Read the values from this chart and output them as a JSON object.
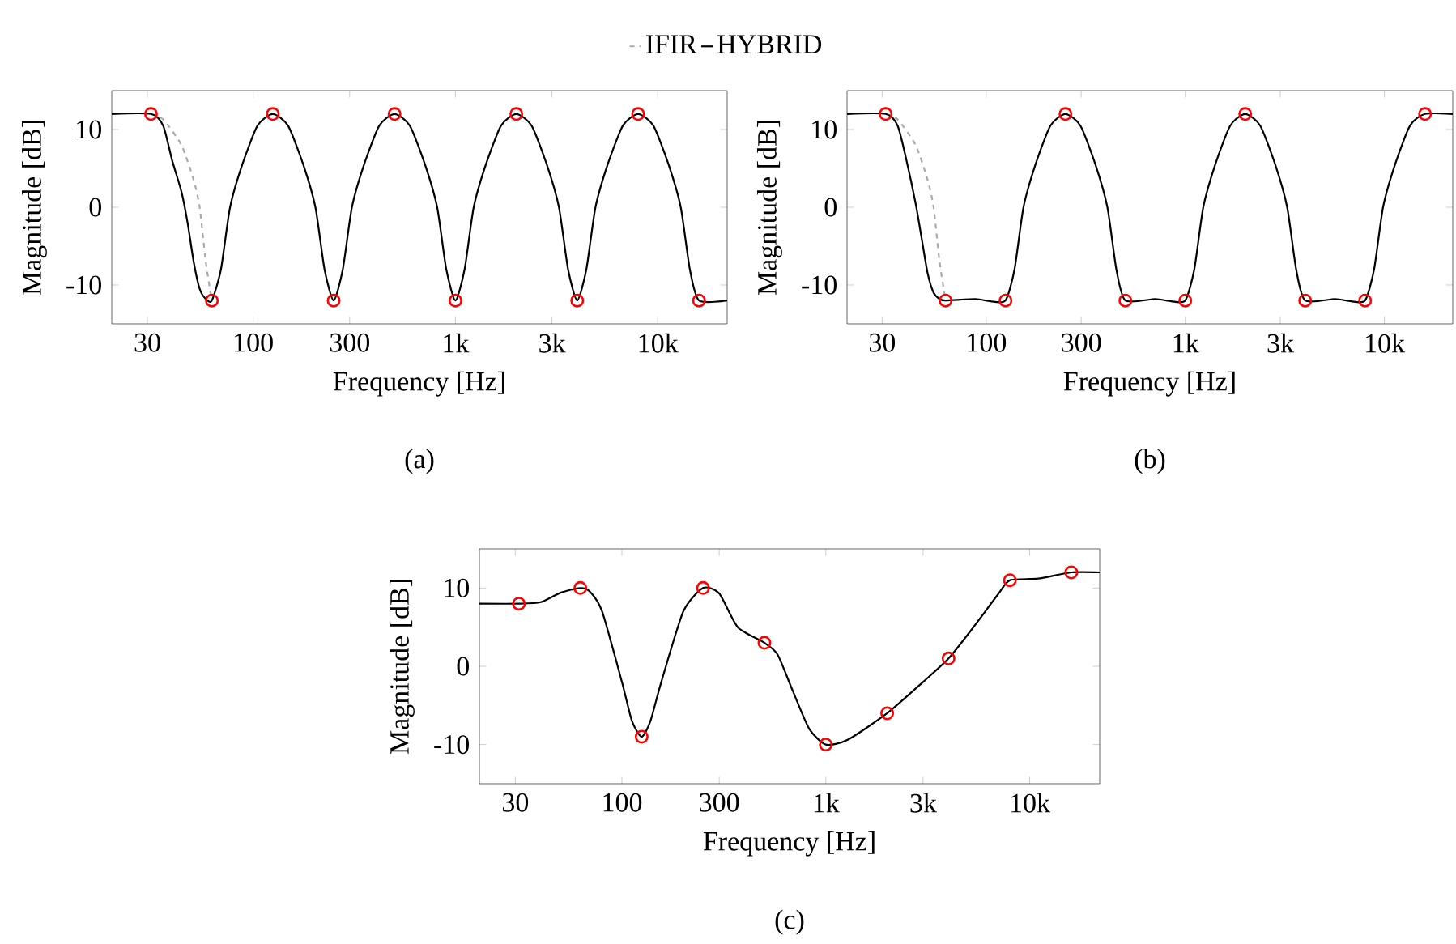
{
  "chart_data": [
    {
      "type": "line",
      "xlabel": "Frequency [Hz]",
      "ylabel": "Magnitude [dB]",
      "log": "x",
      "xlim": [
        20,
        22050
      ],
      "ylim": [
        -15,
        15
      ],
      "xticks": [
        {
          "value": 30,
          "label": "30"
        },
        {
          "value": 100,
          "label": "100"
        },
        {
          "value": 300,
          "label": "300"
        },
        {
          "value": 1000,
          "label": "1k"
        },
        {
          "value": 3000,
          "label": "3k"
        },
        {
          "value": 10000,
          "label": "10k"
        }
      ],
      "yticks": [
        -10,
        0,
        10
      ],
      "legend": "top",
      "annotations": [
        "(a)"
      ],
      "series": [
        {
          "name": "IFIR",
          "line_style": "dashed",
          "color": "#aaaaaa",
          "x": [
            31.25,
            35.9,
            44.2,
            50.8,
            54.4,
            58.3,
            62.5
          ],
          "values": [
            12,
            11.3,
            8,
            3.5,
            0,
            -7,
            -12
          ]
        },
        {
          "name": "HYBRID",
          "line_style": "solid",
          "color": "#000000",
          "x": [
            20,
            31.25,
            35.9,
            39.8,
            44.2,
            47.4,
            50.8,
            54.4,
            58.3,
            62.5,
            69.3,
            76.9,
            88.4,
            105.1,
            125,
            148.7,
            176.8,
            203.1,
            225.3,
            250,
            277.4,
            307.8,
            353.6,
            420.4,
            500,
            594.6,
            707.1,
            812.3,
            901.3,
            1000,
            1109.6,
            1231.1,
            1414.2,
            1681.8,
            2000,
            2378.4,
            2828.4,
            3249,
            3605,
            4000,
            4438,
            4924,
            5657,
            6727,
            8000,
            9514,
            11314,
            12996,
            14420,
            16000,
            22050
          ],
          "values": [
            12,
            12,
            10.5,
            6,
            2,
            -2,
            -7,
            -10.5,
            -11.8,
            -12,
            -8,
            0,
            5.5,
            10.5,
            12,
            10.5,
            5.5,
            0,
            -8,
            -12,
            -8,
            0,
            5.5,
            10.5,
            12,
            10.5,
            5.5,
            0,
            -8,
            -12,
            -8,
            0,
            5.5,
            10.5,
            12,
            10.5,
            5.5,
            0,
            -8,
            -12,
            -8,
            0,
            5.5,
            10.5,
            12,
            10.5,
            5.5,
            0,
            -8,
            -12,
            -12
          ]
        },
        {
          "type": "scatter",
          "marker": "circle",
          "color": "#ff0000",
          "x": [
            31.25,
            62.5,
            125,
            250,
            500,
            1000,
            2000,
            4000,
            8000,
            16000
          ],
          "values": [
            12,
            -12,
            12,
            -12,
            12,
            -12,
            12,
            -12,
            12,
            -12
          ]
        }
      ]
    },
    {
      "type": "line",
      "xlabel": "Frequency [Hz]",
      "ylabel": "Magnitude [dB]",
      "log": "x",
      "xlim": [
        20,
        22050
      ],
      "ylim": [
        -15,
        15
      ],
      "xticks": [
        {
          "value": 30,
          "label": "30"
        },
        {
          "value": 100,
          "label": "100"
        },
        {
          "value": 300,
          "label": "300"
        },
        {
          "value": 1000,
          "label": "1k"
        },
        {
          "value": 3000,
          "label": "3k"
        },
        {
          "value": 10000,
          "label": "10k"
        }
      ],
      "yticks": [
        -10,
        0,
        10
      ],
      "annotations": [
        "(b)"
      ],
      "series": [
        {
          "line_style": "dashed",
          "color": "#aaaaaa",
          "x": [
            31.25,
            35.9,
            44.2,
            50.8,
            54.4,
            58.3,
            62.5
          ],
          "values": [
            12,
            11.3,
            8,
            3.5,
            0,
            -7,
            -12
          ]
        },
        {
          "line_style": "solid",
          "color": "#000000",
          "x": [
            20,
            31.25,
            35.9,
            39.8,
            44.2,
            47.4,
            50.8,
            54.4,
            58.3,
            62.5,
            88.4,
            105,
            125,
            138.7,
            153.9,
            176.8,
            210.2,
            250,
            297.3,
            353.6,
            406.1,
            450.6,
            500,
            707,
            850,
            1000,
            1109.6,
            1231.1,
            1414.2,
            1681.8,
            2000,
            2378.4,
            2828.4,
            3249,
            3605,
            4000,
            5657,
            6800,
            8000,
            8877,
            9849,
            11314,
            13454,
            16000,
            22050
          ],
          "values": [
            12,
            12,
            10.5,
            6,
            0.5,
            -4,
            -8.5,
            -11,
            -11.8,
            -12,
            -11.8,
            -12.1,
            -12,
            -8,
            0,
            5.5,
            10.5,
            12,
            10.5,
            5.5,
            0,
            -8,
            -12,
            -11.8,
            -12.1,
            -12,
            -8,
            0,
            5.5,
            10.5,
            12,
            10.5,
            5.5,
            0,
            -8,
            -12,
            -11.8,
            -12.1,
            -12,
            -8,
            0,
            5.5,
            10.5,
            12,
            12
          ]
        },
        {
          "type": "scatter",
          "marker": "circle",
          "color": "#ff0000",
          "x": [
            31.25,
            62.5,
            125,
            250,
            500,
            1000,
            2000,
            4000,
            8000,
            16000
          ],
          "values": [
            12,
            -12,
            -12,
            12,
            -12,
            -12,
            12,
            -12,
            -12,
            12
          ]
        }
      ]
    },
    {
      "type": "line",
      "xlabel": "Frequency [Hz]",
      "ylabel": "Magnitude [dB]",
      "log": "x",
      "xlim": [
        20,
        22050
      ],
      "ylim": [
        -15,
        15
      ],
      "xticks": [
        {
          "value": 30,
          "label": "30"
        },
        {
          "value": 100,
          "label": "100"
        },
        {
          "value": 300,
          "label": "300"
        },
        {
          "value": 1000,
          "label": "1k"
        },
        {
          "value": 3000,
          "label": "3k"
        },
        {
          "value": 10000,
          "label": "10k"
        }
      ],
      "yticks": [
        -10,
        0,
        10
      ],
      "annotations": [
        "(c)"
      ],
      "series": [
        {
          "line_style": "solid",
          "color": "#000000",
          "x": [
            20,
            31.25,
            40,
            50,
            62.5,
            70,
            80,
            100,
            112,
            125,
            138,
            156,
            200,
            250,
            300,
            370,
            500,
            580,
            690,
            830,
            1000,
            1280,
            2000,
            3000,
            4000,
            5300,
            7000,
            8000,
            11000,
            16000,
            22050
          ],
          "values": [
            8,
            8,
            8.2,
            9.4,
            10,
            9.5,
            7,
            -2,
            -7,
            -9,
            -7,
            -2,
            7,
            10,
            9.3,
            5,
            3,
            1.5,
            -3.2,
            -8,
            -10,
            -9.4,
            -6,
            -2,
            1,
            5,
            9.2,
            11,
            11.2,
            12,
            12
          ]
        },
        {
          "type": "scatter",
          "marker": "circle",
          "color": "#ff0000",
          "x": [
            31.25,
            62.5,
            125,
            250,
            500,
            1000,
            2000,
            4000,
            8000,
            16000
          ],
          "values": [
            8,
            10,
            -9,
            10,
            3,
            -10,
            -6,
            1,
            11,
            12
          ]
        }
      ]
    }
  ]
}
